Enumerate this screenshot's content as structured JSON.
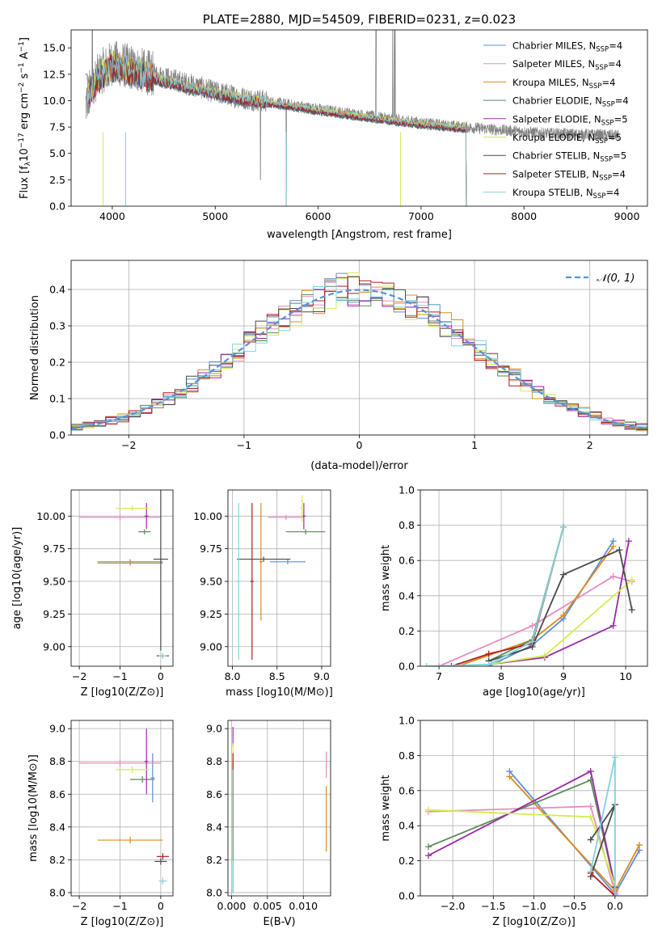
{
  "colors": {
    "Chabrier MILES": "#5b8fdc",
    "Salpeter MILES": "#e88cc0",
    "Kroupa MILES": "#d98c1c",
    "Chabrier ELODIE": "#5a8a5a",
    "Salpeter ELODIE": "#9a2aa8",
    "Kroupa ELODIE": "#d4ec4e",
    "Chabrier STELIB": "#4a4a4a",
    "Salpeter STELIB": "#b21c1c",
    "Kroupa STELIB": "#7fd4dc",
    "data": "#808080",
    "normal": "#5b8fdc"
  },
  "chart_data": [
    {
      "id": "spectrum",
      "type": "line",
      "title": "PLATE=2880, MJD=54509, FIBERID=0231, z=0.023",
      "xlabel": "wavelength [Angstrom, rest frame]",
      "ylabel": "Flux [f_λ 10^-17 erg cm^-2 s^-1 A^-1]",
      "ylabel_parts": {
        "pre": "Flux [f",
        "sub1": "λ",
        "mid1": "10",
        "sup1": "−17",
        "mid2": " erg cm",
        "sup2": "−2",
        "mid3": " s",
        "sup3": "−1",
        "mid4": " A",
        "sup4": "−1",
        "post": "]"
      },
      "xlim": [
        3600,
        9200
      ],
      "ylim": [
        0,
        16.7
      ],
      "xticks": [
        4000,
        5000,
        6000,
        7000,
        8000,
        9000
      ],
      "xticklabels": [
        "4000",
        "5000",
        "6000",
        "7000",
        "8000",
        "9000"
      ],
      "yticks": [
        0,
        2.5,
        5,
        7.5,
        10,
        12.5,
        15
      ],
      "yticklabels": [
        "0.0",
        "2.5",
        "5.0",
        "7.5",
        "10.0",
        "12.5",
        "15.0"
      ],
      "data_continuum": {
        "x": [
          3740,
          3800,
          3900,
          4000,
          4100,
          4300,
          4500,
          4800,
          5000,
          5300,
          5600,
          6000,
          6300,
          6600,
          7000,
          7400,
          7800,
          8200,
          8600,
          8920
        ],
        "y": [
          9.5,
          11.5,
          12.8,
          13.6,
          13.4,
          12.8,
          12.2,
          11.4,
          10.8,
          10.2,
          9.8,
          9.2,
          8.8,
          8.4,
          7.9,
          7.5,
          7.2,
          6.9,
          6.8,
          6.7
        ]
      },
      "model_continuum": {
        "x": [
          3740,
          3800,
          3900,
          4000,
          4100,
          4300,
          4500,
          4800,
          5000,
          5300,
          5600,
          6000,
          6300,
          6600,
          7000,
          7440
        ],
        "y": [
          9.2,
          11.2,
          12.4,
          13.2,
          13.0,
          12.4,
          11.8,
          11.1,
          10.6,
          10.0,
          9.6,
          9.0,
          8.6,
          8.2,
          7.7,
          7.3
        ]
      },
      "legend": [
        {
          "name": "Chabrier MILES",
          "n": "4"
        },
        {
          "name": "Salpeter MILES",
          "n": "4"
        },
        {
          "name": "Kroupa MILES",
          "n": "4"
        },
        {
          "name": "Chabrier ELODIE",
          "n": "4"
        },
        {
          "name": "Salpeter ELODIE",
          "n": "5"
        },
        {
          "name": "Kroupa ELODIE",
          "n": "5"
        },
        {
          "name": "Chabrier STELIB",
          "n": "5"
        },
        {
          "name": "Salpeter STELIB",
          "n": "4"
        },
        {
          "name": "Kroupa STELIB",
          "n": "4"
        }
      ],
      "legend_sub": "SSP",
      "legend_prefix": "N",
      "legend_placement": "top-right"
    },
    {
      "id": "residuals",
      "type": "line",
      "xlabel": "(data-model)/error",
      "ylabel": "Normed distribution",
      "xlim": [
        -2.5,
        2.5
      ],
      "ylim": [
        0,
        0.48
      ],
      "xticks": [
        -2,
        -1,
        0,
        1,
        2
      ],
      "xticklabels": [
        "−2",
        "−1",
        "0",
        "1",
        "2"
      ],
      "yticks": [
        0,
        0.1,
        0.2,
        0.3,
        0.4
      ],
      "yticklabels": [
        "0.0",
        "0.1",
        "0.2",
        "0.3",
        "0.4"
      ],
      "grid": true,
      "legend_label": "𝒩(0, 1)",
      "legend_placement": "top-right"
    },
    {
      "id": "age_vs_Z",
      "type": "scatter",
      "xlabel": "Z [log10(Z/Z⊙)]",
      "ylabel": "age [log10(age/yr)]",
      "xlim": [
        -2.2,
        0.3
      ],
      "ylim": [
        8.85,
        10.2
      ],
      "xticks": [
        -2,
        -1,
        0
      ],
      "xticklabels": [
        "−2",
        "−1",
        "0"
      ],
      "yticks": [
        9.0,
        9.25,
        9.5,
        9.75,
        10.0
      ],
      "yticklabels": [
        "9.00",
        "9.25",
        "9.50",
        "9.75",
        "10.00"
      ],
      "points": [
        {
          "s": "Chabrier MILES",
          "x": -0.75,
          "xerr": 0.8,
          "y": 9.65,
          "yerr": 0.02
        },
        {
          "s": "Salpeter MILES",
          "x": -1.0,
          "xerr": 1.0,
          "y": 9.99,
          "yerr": 0.02
        },
        {
          "s": "Kroupa MILES",
          "x": -0.75,
          "xerr": 0.8,
          "y": 9.64,
          "yerr": 0.02
        },
        {
          "s": "Chabrier ELODIE",
          "x": -0.4,
          "xerr": 0.15,
          "y": 9.88,
          "yerr": 0.02
        },
        {
          "s": "Salpeter ELODIE",
          "x": -0.35,
          "xerr": 0.05,
          "y": 10.0,
          "yerr": 0.1
        },
        {
          "s": "Kroupa ELODIE",
          "x": -0.7,
          "xerr": 0.4,
          "y": 10.06,
          "yerr": 0.02
        },
        {
          "s": "Chabrier STELIB",
          "x": 0.0,
          "xerr": 0.18,
          "y": 9.67,
          "yerr": 0.7
        },
        {
          "s": "Salpeter STELIB",
          "x": 0.05,
          "xerr": 0.15,
          "y": 8.93,
          "yerr": 0.02
        },
        {
          "s": "Kroupa STELIB",
          "x": 0.05,
          "xerr": 0.1,
          "y": 8.93,
          "yerr": 0.02
        }
      ]
    },
    {
      "id": "age_vs_mass",
      "type": "scatter",
      "xlabel": "mass [log10(M/M⊙)]",
      "xlim": [
        7.95,
        9.1
      ],
      "ylim": [
        8.85,
        10.2
      ],
      "xticks": [
        8.0,
        8.5,
        9.0
      ],
      "xticklabels": [
        "8.0",
        "8.5",
        "9.0"
      ],
      "yticks": [
        9.0,
        9.25,
        9.5,
        9.75,
        10.0
      ],
      "yticklabels": [
        "9.00",
        "9.25",
        "9.50",
        "9.75",
        "10.00"
      ],
      "points": [
        {
          "s": "Chabrier MILES",
          "x": 8.62,
          "xerr": 0.2,
          "y": 9.65,
          "yerr": 0.02
        },
        {
          "s": "Salpeter MILES",
          "x": 8.6,
          "xerr": 0.2,
          "y": 9.99,
          "yerr": 0.02
        },
        {
          "s": "Kroupa MILES",
          "x": 8.32,
          "xerr": 0.02,
          "y": 9.65,
          "yerr": 0.45
        },
        {
          "s": "Chabrier ELODIE",
          "x": 8.82,
          "xerr": 0.22,
          "y": 9.88,
          "yerr": 0.02
        },
        {
          "s": "Salpeter ELODIE",
          "x": 8.8,
          "xerr": 0.02,
          "y": 10.0,
          "yerr": 0.1
        },
        {
          "s": "Kroupa ELODIE",
          "x": 8.78,
          "xerr": 0.02,
          "y": 10.06,
          "yerr": 0.1
        },
        {
          "s": "Chabrier STELIB",
          "x": 8.35,
          "xerr": 0.3,
          "y": 9.67,
          "yerr": 0.02
        },
        {
          "s": "Salpeter STELIB",
          "x": 8.22,
          "xerr": 0.02,
          "y": 9.5,
          "yerr": 0.6
        },
        {
          "s": "Kroupa STELIB",
          "x": 8.07,
          "xerr": 0.02,
          "y": 9.5,
          "yerr": 0.6
        }
      ]
    },
    {
      "id": "weight_vs_age",
      "type": "line",
      "xlabel": "age [log10(age/yr)]",
      "ylabel": "mass weight",
      "xlim": [
        6.7,
        10.35
      ],
      "ylim": [
        0,
        1.0
      ],
      "xticks": [
        7,
        8,
        9,
        10
      ],
      "xticklabels": [
        "7",
        "8",
        "9",
        "10"
      ],
      "yticks": [
        0,
        0.2,
        0.4,
        0.6,
        0.8,
        1.0
      ],
      "yticklabels": [
        "0.0",
        "0.2",
        "0.4",
        "0.6",
        "0.8",
        "1.0"
      ],
      "grid": true,
      "series": [
        {
          "s": "Chabrier MILES",
          "x": [
            7.8,
            8.5,
            9.0,
            9.8
          ],
          "y": [
            0.0,
            0.12,
            0.27,
            0.71
          ]
        },
        {
          "s": "Salpeter MILES",
          "x": [
            7.0,
            8.5,
            9.8,
            10.1
          ],
          "y": [
            0.0,
            0.23,
            0.51,
            0.48
          ]
        },
        {
          "s": "Kroupa MILES",
          "x": [
            7.3,
            8.5,
            9.0,
            9.8
          ],
          "y": [
            0.0,
            0.15,
            0.29,
            0.68
          ]
        },
        {
          "s": "Chabrier ELODIE",
          "x": [
            7.8,
            8.5,
            9.0
          ],
          "y": [
            0.03,
            0.15,
            0.79
          ]
        },
        {
          "s": "Salpeter ELODIE",
          "x": [
            7.8,
            8.7,
            9.8,
            10.05
          ],
          "y": [
            0.01,
            0.05,
            0.23,
            0.71
          ]
        },
        {
          "s": "Kroupa ELODIE",
          "x": [
            7.8,
            8.7,
            10.1
          ],
          "y": [
            0.01,
            0.06,
            0.49
          ]
        },
        {
          "s": "Chabrier STELIB",
          "x": [
            7.8,
            8.5,
            9.0,
            9.9,
            10.1
          ],
          "y": [
            0.03,
            0.11,
            0.52,
            0.66,
            0.32
          ]
        },
        {
          "s": "Salpeter STELIB",
          "x": [
            7.2,
            7.8,
            8.5,
            9.0
          ],
          "y": [
            0.0,
            0.07,
            0.13,
            0.79
          ]
        },
        {
          "s": "Kroupa STELIB",
          "x": [
            6.8,
            7.8,
            8.5,
            9.0
          ],
          "y": [
            0.0,
            0.01,
            0.14,
            0.79
          ]
        }
      ]
    },
    {
      "id": "mass_vs_Z",
      "type": "scatter",
      "xlabel": "Z [log10(Z/Z⊙)]",
      "ylabel": "mass [log10(M/M⊙)]",
      "xlim": [
        -2.2,
        0.3
      ],
      "ylim": [
        7.98,
        9.05
      ],
      "xticks": [
        -2,
        -1,
        0
      ],
      "xticklabels": [
        "−2",
        "−1",
        "0"
      ],
      "yticks": [
        8.0,
        8.2,
        8.4,
        8.6,
        8.8,
        9.0
      ],
      "yticklabels": [
        "8.0",
        "8.2",
        "8.4",
        "8.6",
        "8.8",
        "9.0"
      ],
      "points": [
        {
          "s": "Chabrier MILES",
          "x": -0.2,
          "xerr": 0.05,
          "y": 8.7,
          "yerr": 0.15
        },
        {
          "s": "Salpeter MILES",
          "x": -1.0,
          "xerr": 1.0,
          "y": 8.79,
          "yerr": 0.02
        },
        {
          "s": "Kroupa MILES",
          "x": -0.75,
          "xerr": 0.8,
          "y": 8.32,
          "yerr": 0.02
        },
        {
          "s": "Chabrier ELODIE",
          "x": -0.45,
          "xerr": 0.3,
          "y": 8.69,
          "yerr": 0.02
        },
        {
          "s": "Salpeter ELODIE",
          "x": -0.35,
          "xerr": 0.05,
          "y": 8.8,
          "yerr": 0.2
        },
        {
          "s": "Kroupa ELODIE",
          "x": -0.7,
          "xerr": 0.4,
          "y": 8.75,
          "yerr": 0.02
        },
        {
          "s": "Chabrier STELIB",
          "x": 0.0,
          "xerr": 0.15,
          "y": 8.19,
          "yerr": 0.02
        },
        {
          "s": "Salpeter STELIB",
          "x": 0.05,
          "xerr": 0.15,
          "y": 8.22,
          "yerr": 0.02
        },
        {
          "s": "Kroupa STELIB",
          "x": 0.05,
          "xerr": 0.1,
          "y": 8.07,
          "yerr": 0.02
        }
      ]
    },
    {
      "id": "mass_vs_EBV",
      "type": "scatter",
      "xlabel": "E(B-V)",
      "xlim": [
        -0.0005,
        0.0138
      ],
      "ylim": [
        7.98,
        9.05
      ],
      "xticks": [
        0.0,
        0.005,
        0.01
      ],
      "xticklabels": [
        "0.000",
        "0.005",
        "0.010"
      ],
      "yticks": [
        8.0,
        8.2,
        8.4,
        8.6,
        8.8,
        9.0
      ],
      "yticklabels": [
        "8.0",
        "8.2",
        "8.4",
        "8.6",
        "8.8",
        "9.0"
      ],
      "points": [
        {
          "s": "Salpeter MILES",
          "x": 0.0132,
          "xerr": 0.0,
          "y": 8.78,
          "yerr": 0.08
        },
        {
          "s": "Kroupa MILES",
          "x": 0.0132,
          "xerr": 0.0,
          "y": 8.45,
          "yerr": 0.2
        },
        {
          "s": "Chabrier ELODIE",
          "x": 0.0002,
          "xerr": 0.0,
          "y": 8.4,
          "yerr": 0.4
        },
        {
          "s": "Salpeter ELODIE",
          "x": 0.0002,
          "xerr": 0.0,
          "y": 8.95,
          "yerr": 0.06
        },
        {
          "s": "Kroupa ELODIE",
          "x": 0.0002,
          "xerr": 0.0,
          "y": 8.85,
          "yerr": 0.06
        },
        {
          "s": "Salpeter STELIB",
          "x": 0.0002,
          "xerr": 0.0,
          "y": 8.8,
          "yerr": 0.05
        },
        {
          "s": "Kroupa STELIB",
          "x": 0.0002,
          "xerr": 0.0,
          "y": 8.1,
          "yerr": 0.1
        }
      ]
    },
    {
      "id": "weight_vs_Z",
      "type": "line",
      "xlabel": "Z [log10(Z/Z⊙)]",
      "ylabel": "mass weight",
      "xlim": [
        -2.4,
        0.4
      ],
      "ylim": [
        0,
        1.0
      ],
      "xticks": [
        -2.0,
        -1.5,
        -1.0,
        -0.5,
        0.0
      ],
      "xticklabels": [
        "−2.0",
        "−1.5",
        "−1.0",
        "−0.5",
        "0.0"
      ],
      "yticks": [
        0,
        0.2,
        0.4,
        0.6,
        0.8,
        1.0
      ],
      "yticklabels": [
        "0.0",
        "0.2",
        "0.4",
        "0.6",
        "0.8",
        "1.0"
      ],
      "grid": true,
      "series": [
        {
          "s": "Chabrier MILES",
          "x": [
            -1.3,
            0.0,
            0.3
          ],
          "y": [
            0.71,
            0.01,
            0.26
          ]
        },
        {
          "s": "Salpeter MILES",
          "x": [
            -2.3,
            -0.3,
            0.0
          ],
          "y": [
            0.48,
            0.51,
            0.02
          ]
        },
        {
          "s": "Kroupa MILES",
          "x": [
            -1.3,
            0.0,
            0.3
          ],
          "y": [
            0.68,
            0.03,
            0.29
          ]
        },
        {
          "s": "Chabrier ELODIE",
          "x": [
            -2.3,
            -0.3,
            0.0
          ],
          "y": [
            0.28,
            0.66,
            0.05
          ]
        },
        {
          "s": "Salpeter ELODIE",
          "x": [
            -2.3,
            -0.3,
            0.0
          ],
          "y": [
            0.23,
            0.71,
            0.05
          ]
        },
        {
          "s": "Kroupa ELODIE",
          "x": [
            -2.3,
            -0.3,
            0.0
          ],
          "y": [
            0.49,
            0.45,
            0.06
          ]
        },
        {
          "s": "Chabrier STELIB",
          "x": [
            -0.3,
            0.0,
            -0.3,
            0.0
          ],
          "y": [
            0.11,
            0.52,
            0.32,
            0.52
          ]
        },
        {
          "s": "Salpeter STELIB",
          "x": [
            -0.3,
            0.0
          ],
          "y": [
            0.13,
            0.0
          ]
        },
        {
          "s": "Kroupa STELIB",
          "x": [
            -0.3,
            0.0,
            0.0
          ],
          "y": [
            0.14,
            0.79,
            0.0
          ]
        }
      ]
    }
  ]
}
